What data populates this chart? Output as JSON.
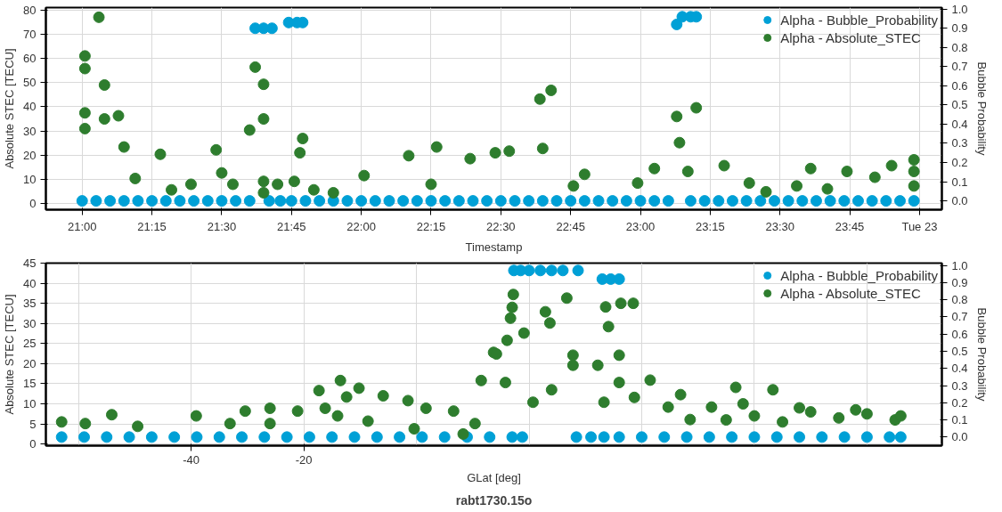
{
  "chart_data": [
    {
      "type": "scatter",
      "xlabel": "Timestamp",
      "ylabel": "Absolute STEC [TECU]",
      "y2label": "Bubble Probability",
      "xlim": [
        20.87,
        24.08
      ],
      "ylim": [
        -2.5,
        81
      ],
      "y2lim": [
        -0.046,
        1.008
      ],
      "xticks": [
        {
          "value": 21,
          "label": "21:00"
        },
        {
          "value": 21.25,
          "label": "21:15"
        },
        {
          "value": 21.5,
          "label": "21:30"
        },
        {
          "value": 21.75,
          "label": "21:45"
        },
        {
          "value": 22,
          "label": "22:00"
        },
        {
          "value": 22.25,
          "label": "22:15"
        },
        {
          "value": 22.5,
          "label": "22:30"
        },
        {
          "value": 22.75,
          "label": "22:45"
        },
        {
          "value": 23,
          "label": "23:00"
        },
        {
          "value": 23.25,
          "label": "23:15"
        },
        {
          "value": 23.5,
          "label": "23:30"
        },
        {
          "value": 23.75,
          "label": "23:45"
        },
        {
          "value": 24,
          "label": "Tue 23"
        }
      ],
      "yticks": [
        0,
        10,
        20,
        30,
        40,
        50,
        60,
        70,
        80
      ],
      "y2ticks": [
        {
          "value": 0,
          "label": "0.0"
        },
        {
          "value": 0.1,
          "label": "0.1"
        },
        {
          "value": 0.2,
          "label": "0.2"
        },
        {
          "value": 0.3,
          "label": "0.3"
        },
        {
          "value": 0.4,
          "label": "0.4"
        },
        {
          "value": 0.5,
          "label": "0.5"
        },
        {
          "value": 0.6,
          "label": "0.6"
        },
        {
          "value": 0.7,
          "label": "0.7"
        },
        {
          "value": 0.8,
          "label": "0.8"
        },
        {
          "value": 0.9,
          "label": "0.9"
        },
        {
          "value": 1,
          "label": "1.0"
        }
      ],
      "grid": true,
      "legend": "top right",
      "marker": "circle",
      "series": [
        {
          "name": "Alpha - Bubble_Probability",
          "color": "#00a0d6",
          "axis": "y2",
          "x": [
            21.0,
            21.05,
            21.1,
            21.15,
            21.2,
            21.25,
            21.3,
            21.35,
            21.4,
            21.45,
            21.5,
            21.55,
            21.6,
            21.62,
            21.65,
            21.68,
            21.67,
            21.71,
            21.75,
            21.74,
            21.77,
            21.79,
            21.8,
            21.85,
            21.9,
            21.95,
            22.0,
            22.05,
            22.1,
            22.15,
            22.2,
            22.25,
            22.3,
            22.35,
            22.4,
            22.45,
            22.5,
            22.55,
            22.6,
            22.65,
            22.7,
            22.75,
            22.8,
            22.85,
            22.9,
            22.95,
            23.0,
            23.05,
            23.1,
            23.13,
            23.15,
            23.18,
            23.2,
            23.18,
            23.23,
            23.28,
            23.33,
            23.38,
            23.43,
            23.48,
            23.53,
            23.58,
            23.63,
            23.68,
            23.73,
            23.78,
            23.83,
            23.88,
            23.93,
            23.98
          ],
          "values": [
            0,
            0,
            0,
            0,
            0,
            0,
            0,
            0,
            0,
            0,
            0,
            0,
            0,
            0.9,
            0.9,
            0.9,
            0,
            0,
            0,
            0.93,
            0.93,
            0.93,
            0,
            0,
            0,
            0,
            0,
            0,
            0,
            0,
            0,
            0,
            0,
            0,
            0,
            0,
            0,
            0,
            0,
            0,
            0,
            0,
            0,
            0,
            0,
            0,
            0,
            0,
            0,
            0.92,
            0.96,
            0.96,
            0.96,
            0,
            0,
            0,
            0,
            0,
            0,
            0,
            0,
            0,
            0,
            0,
            0,
            0,
            0,
            0,
            0,
            0
          ]
        },
        {
          "name": "Alpha - Absolute_STEC",
          "color": "#2e7d2e",
          "x": [
            21.01,
            21.06,
            21.01,
            21.01,
            21.01,
            21.08,
            21.13,
            21.08,
            21.15,
            21.19,
            21.28,
            21.39,
            21.48,
            21.54,
            21.6,
            21.62,
            21.65,
            21.65,
            21.65,
            21.65,
            21.7,
            21.76,
            21.79,
            21.78,
            21.83,
            22.01,
            22.17,
            22.27,
            22.39,
            22.48,
            22.25,
            21.9,
            21.32,
            21.5,
            22.68,
            22.64,
            22.53,
            22.65,
            22.76,
            22.8,
            22.99,
            23.05,
            23.13,
            23.2,
            23.14,
            23.17,
            23.3,
            23.39,
            23.56,
            23.61,
            23.74,
            23.84,
            23.9,
            23.98,
            23.98,
            23.98,
            23.67,
            23.45
          ],
          "values": [
            61,
            77,
            55.8,
            31,
            37.5,
            35,
            36.3,
            49,
            23.4,
            10.4,
            20.4,
            8,
            22.2,
            8,
            30.4,
            56.4,
            49.3,
            35,
            9.2,
            4.5,
            8,
            9.2,
            26.9,
            21,
            5.7,
            11.6,
            19.8,
            23.4,
            18.6,
            21,
            8,
            4.5,
            5.7,
            12.7,
            46.8,
            43.2,
            21.7,
            22.8,
            7.3,
            12.1,
            8.5,
            14.5,
            36,
            39.6,
            25.2,
            13.3,
            15.7,
            8.5,
            7.3,
            14.5,
            13.3,
            10.9,
            15.7,
            18.1,
            13.3,
            7.3,
            6.1,
            4.9
          ]
        }
      ]
    },
    {
      "type": "scatter",
      "xlabel": "GLat [deg]",
      "ylabel": "Absolute STEC [TECU]",
      "y2label": "Bubble Probability",
      "xlim": [
        -65.8,
        93.3
      ],
      "ylim": [
        -0.4,
        45
      ],
      "y2lim": [
        -0.05,
        1.013
      ],
      "xticks": [
        {
          "value": -60,
          "label": null
        },
        -40,
        -20,
        {
          "value": 0,
          "label": null
        },
        {
          "value": 20,
          "label": null
        },
        {
          "value": 40,
          "label": null
        },
        {
          "value": 60,
          "label": null
        },
        {
          "value": 80,
          "label": null
        }
      ],
      "yticks": [
        0,
        5,
        10,
        15,
        20,
        25,
        30,
        35,
        40,
        45
      ],
      "y2ticks": [
        {
          "value": 0,
          "label": "0.0"
        },
        {
          "value": 0.1,
          "label": "0.1"
        },
        {
          "value": 0.2,
          "label": "0.2"
        },
        {
          "value": 0.3,
          "label": "0.3"
        },
        {
          "value": 0.4,
          "label": "0.4"
        },
        {
          "value": 0.5,
          "label": "0.5"
        },
        {
          "value": 0.6,
          "label": "0.6"
        },
        {
          "value": 0.7,
          "label": "0.7"
        },
        {
          "value": 0.8,
          "label": "0.8"
        },
        {
          "value": 0.9,
          "label": "0.9"
        },
        {
          "value": 1,
          "label": "1.0"
        }
      ],
      "grid": true,
      "legend": "top right",
      "marker": "circle",
      "annotations": [
        "rabt1730.15o"
      ],
      "series": [
        {
          "name": "Alpha - Bubble_Probability",
          "color": "#00a0d6",
          "axis": "y2",
          "x": [
            -63,
            -59,
            -55,
            -51,
            -47,
            -43,
            -39,
            -35,
            -31,
            -27,
            -23,
            -19,
            -15,
            -11,
            -7,
            -3,
            1,
            5,
            9,
            13,
            17,
            18.8,
            28.4,
            31,
            33.3,
            36,
            40,
            44,
            48,
            52,
            56,
            60,
            64,
            68,
            72,
            76,
            80,
            84,
            86,
            17.3,
            18.5,
            20,
            22,
            24,
            26,
            28.7,
            33,
            34.5,
            36
          ],
          "values": [
            0,
            0,
            0,
            0,
            0,
            0,
            0,
            0,
            0,
            0,
            0,
            0,
            0,
            0,
            0,
            0,
            0,
            0,
            0,
            0,
            0,
            0,
            0,
            0,
            0,
            0,
            0,
            0,
            0,
            0,
            0,
            0,
            0,
            0,
            0,
            0,
            0,
            0,
            0,
            0.97,
            0.97,
            0.97,
            0.97,
            0.97,
            0.97,
            0.97,
            0.92,
            0.92,
            0.92
          ]
        },
        {
          "name": "Alpha - Absolute_STEC",
          "color": "#2e7d2e",
          "x": [
            -63,
            -58.8,
            -54.1,
            -49.5,
            -39.1,
            -30.4,
            -26,
            -21.1,
            -17.3,
            -13.5,
            -10.2,
            -5.9,
            -1.5,
            1.7,
            6.6,
            11.5,
            13.7,
            -33.1,
            -26,
            -16.2,
            -14,
            -8.6,
            -0.4,
            8.3,
            -12.4,
            10.4,
            14.2,
            15.8,
            16.1,
            16.7,
            17,
            17.2,
            19.1,
            20.7,
            22.9,
            23.7,
            24,
            26.7,
            27.8,
            27.8,
            32.2,
            33.3,
            33.6,
            34.1,
            36.3,
            38.5,
            36,
            41.5,
            46.9,
            48.6,
            52.4,
            56.7,
            63.3,
            36,
            38.7,
            44.7,
            55,
            60,
            65,
            70,
            75,
            80,
            85,
            58,
            68,
            78,
            86
          ],
          "values": [
            5.5,
            5.1,
            7.3,
            4.4,
            7,
            8.2,
            8.9,
            8.2,
            13.3,
            15.8,
            13.9,
            12,
            10.8,
            8.9,
            8.2,
            15.8,
            22.8,
            5.1,
            5.1,
            8.9,
            7,
            5.7,
            3.8,
            2.5,
            11.7,
            5.1,
            22.4,
            15.3,
            25.8,
            31.3,
            34,
            37.2,
            27.6,
            10.4,
            32.9,
            30.1,
            13.5,
            36.3,
            22.1,
            19.6,
            19.6,
            10.4,
            34.1,
            29.2,
            35,
            35,
            22.1,
            15.9,
            12.3,
            6.1,
            9.2,
            14.1,
            13.5,
            15.3,
            11.6,
            9.2,
            6,
            7,
            5.5,
            8,
            6.5,
            7.5,
            6,
            10,
            9,
            8.5,
            7
          ]
        }
      ]
    }
  ]
}
